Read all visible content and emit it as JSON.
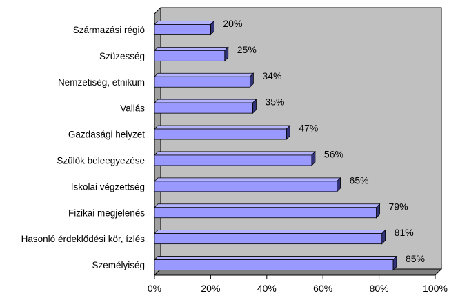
{
  "chart_data": {
    "type": "bar",
    "orientation": "horizontal",
    "categories": [
      "Származási régió",
      "Szüzesség",
      "Nemzetiség, etnikum",
      "Vallás",
      "Gazdasági helyzet",
      "Szülők beleegyezése",
      "Iskolai végzettség",
      "Fizikai megjelenés",
      "Hasonló érdeklődési kör, ízlés",
      "Személyiség"
    ],
    "values": [
      20,
      25,
      34,
      35,
      47,
      56,
      65,
      79,
      81,
      85
    ],
    "value_labels": [
      "20%",
      "25%",
      "34%",
      "35%",
      "47%",
      "56%",
      "65%",
      "79%",
      "81%",
      "85%"
    ],
    "xlim": [
      0,
      100
    ],
    "x_ticks": [
      0,
      20,
      40,
      60,
      80,
      100
    ],
    "x_tick_labels": [
      "0%",
      "20%",
      "40%",
      "60%",
      "80%",
      "100%"
    ],
    "grid": false,
    "legend": "none",
    "colors": {
      "bar_front": "#9999ff",
      "bar_top": "#b3b3ff",
      "bar_side": "#33337a",
      "plot_back": "#c0c0c0",
      "plot_floor": "#808080",
      "plot_wall": "#a0a0a0"
    }
  }
}
